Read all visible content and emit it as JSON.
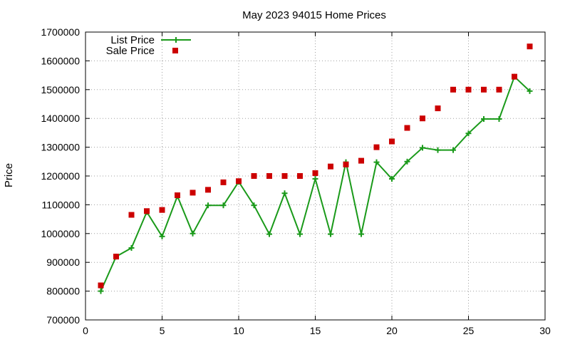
{
  "chart_data": {
    "type": "line",
    "title": "May 2023 94015 Home Prices",
    "xlabel": "",
    "ylabel": "Price",
    "xlim": [
      0,
      30
    ],
    "ylim": [
      700000,
      1700000
    ],
    "x_ticks": [
      "0",
      "5",
      "10",
      "15",
      "20",
      "25",
      "30"
    ],
    "y_ticks": [
      "700000",
      "800000",
      "900000",
      "1000000",
      "1100000",
      "1200000",
      "1300000",
      "1400000",
      "1500000",
      "1600000",
      "1700000"
    ],
    "grid": true,
    "legend_position": "top-left",
    "series": [
      {
        "name": "List Price",
        "style": "line-plus",
        "color": "#1a9a1a",
        "x": [
          1,
          2,
          3,
          4,
          5,
          6,
          7,
          8,
          9,
          10,
          11,
          12,
          13,
          14,
          15,
          16,
          17,
          18,
          19,
          20,
          21,
          22,
          23,
          24,
          25,
          26,
          27,
          28,
          29
        ],
        "y": [
          800000,
          920000,
          950000,
          1075000,
          990000,
          1130000,
          1000000,
          1098000,
          1098000,
          1180000,
          1098000,
          998000,
          1140000,
          998000,
          1190000,
          998000,
          1248000,
          998000,
          1248000,
          1190000,
          1250000,
          1298000,
          1290000,
          1290000,
          1348000,
          1398000,
          1398000,
          1545000,
          1495000
        ]
      },
      {
        "name": "Sale Price",
        "style": "square",
        "color": "#cc0000",
        "x": [
          1,
          2,
          3,
          4,
          5,
          6,
          7,
          8,
          9,
          10,
          11,
          12,
          13,
          14,
          15,
          16,
          17,
          18,
          19,
          20,
          21,
          22,
          23,
          24,
          25,
          26,
          27,
          28,
          29
        ],
        "y": [
          820000,
          920000,
          1065000,
          1078000,
          1082000,
          1133000,
          1142000,
          1152000,
          1178000,
          1182000,
          1200000,
          1200000,
          1200000,
          1200000,
          1210000,
          1233000,
          1240000,
          1253000,
          1300000,
          1320000,
          1367000,
          1400000,
          1435000,
          1500000,
          1500000,
          1500000,
          1500000,
          1545000,
          1650000
        ]
      }
    ]
  }
}
